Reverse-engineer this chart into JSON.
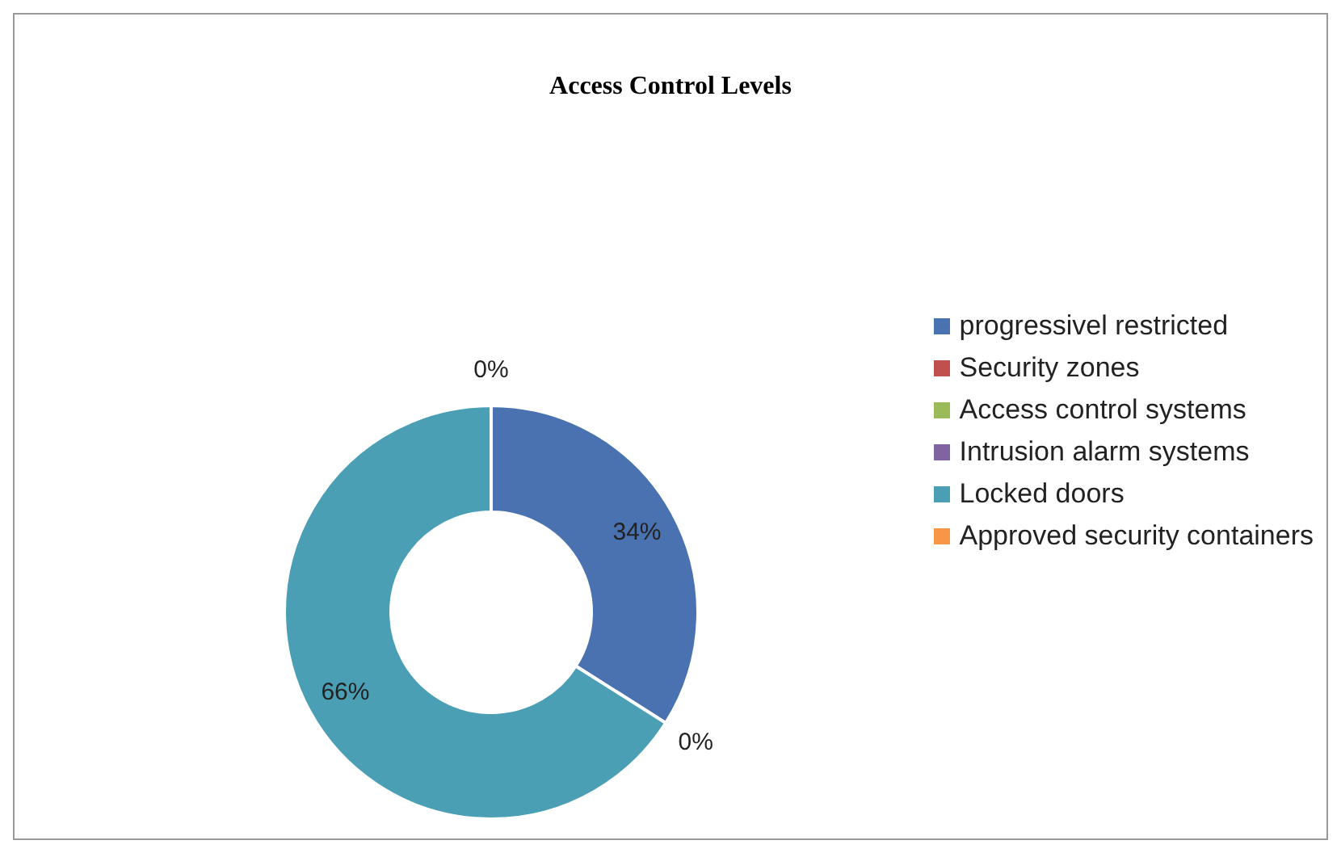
{
  "chart_data": {
    "type": "donut",
    "title": "Access Control Levels",
    "categories": [
      "progressivel restricted",
      "Security zones",
      "Access control systems",
      "Intrusion alarm systems",
      "Locked doors",
      "Approved security containers"
    ],
    "values": [
      34,
      0,
      0,
      0,
      66,
      0
    ],
    "colors": [
      "#4a72b0",
      "#c0504d",
      "#9bbb59",
      "#8064a2",
      "#4a9fb5",
      "#f79646"
    ],
    "value_labels": [
      "34%",
      "0%",
      null,
      null,
      "66%",
      "0%"
    ],
    "legend": "right"
  }
}
